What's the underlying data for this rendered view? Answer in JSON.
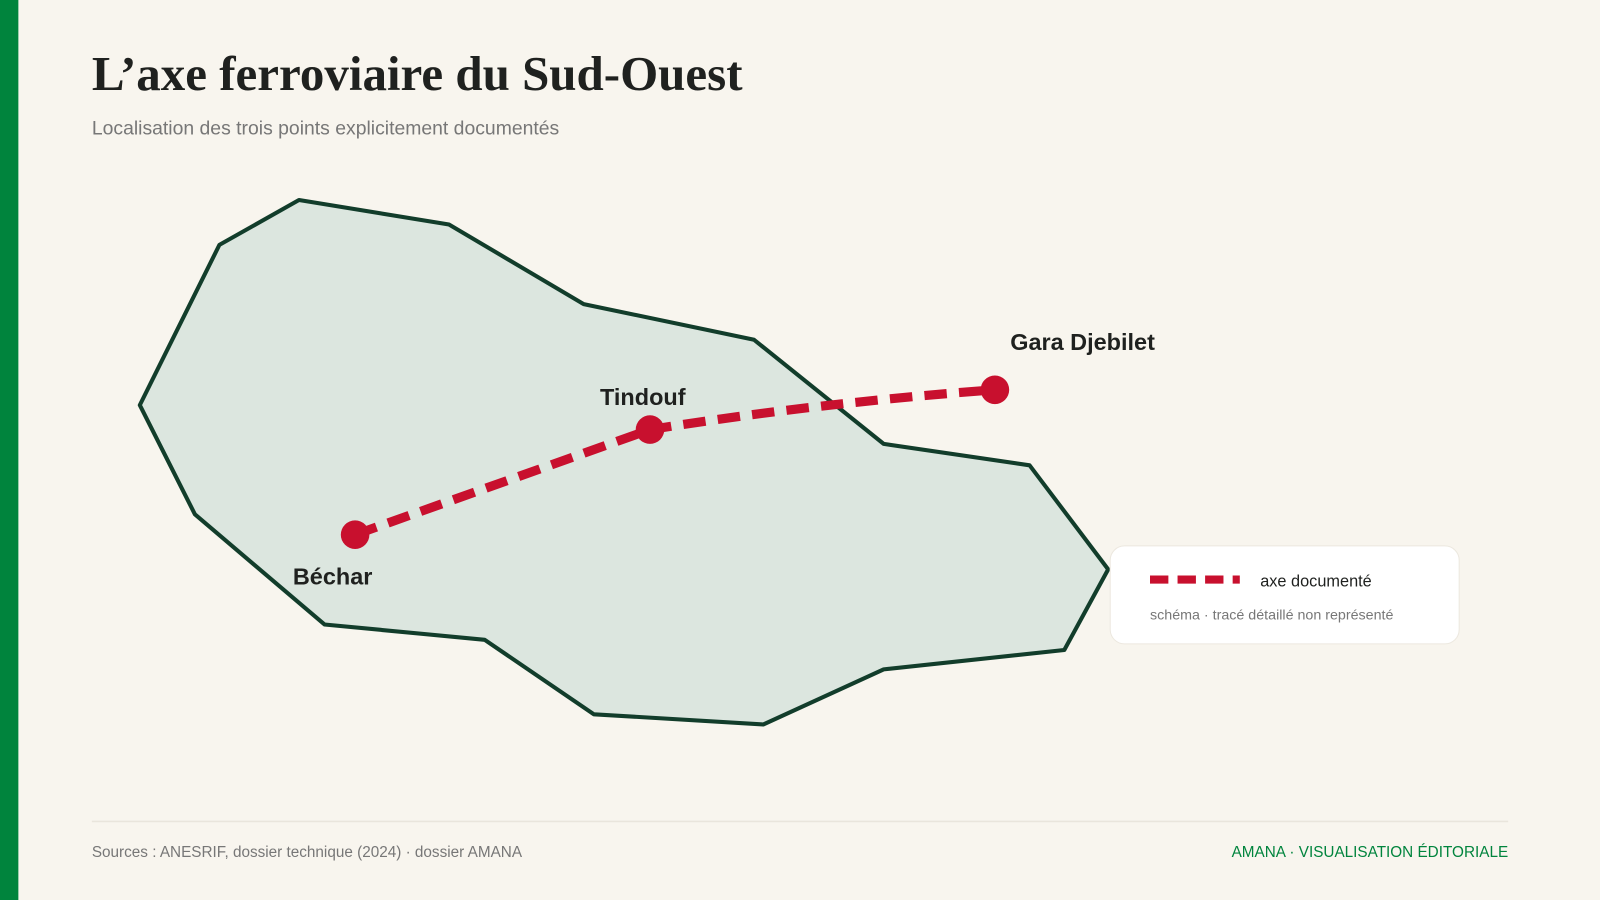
{
  "header": {
    "title": "L’axe ferroviaire du Sud-Ouest",
    "subtitle": "Localisation des trois points explicitement documentés"
  },
  "map": {
    "points": [
      {
        "label": "Béchar"
      },
      {
        "label": "Tindouf"
      },
      {
        "label": "Gara Djebilet"
      }
    ]
  },
  "legend": {
    "line_label": "axe documenté",
    "note": "schéma · tracé détaillé non représenté"
  },
  "footer": {
    "sources": "Sources : ANESRIF, dossier technique (2024) · dossier AMANA",
    "brand": "AMANA · VISUALISATION ÉDITORIALE"
  }
}
